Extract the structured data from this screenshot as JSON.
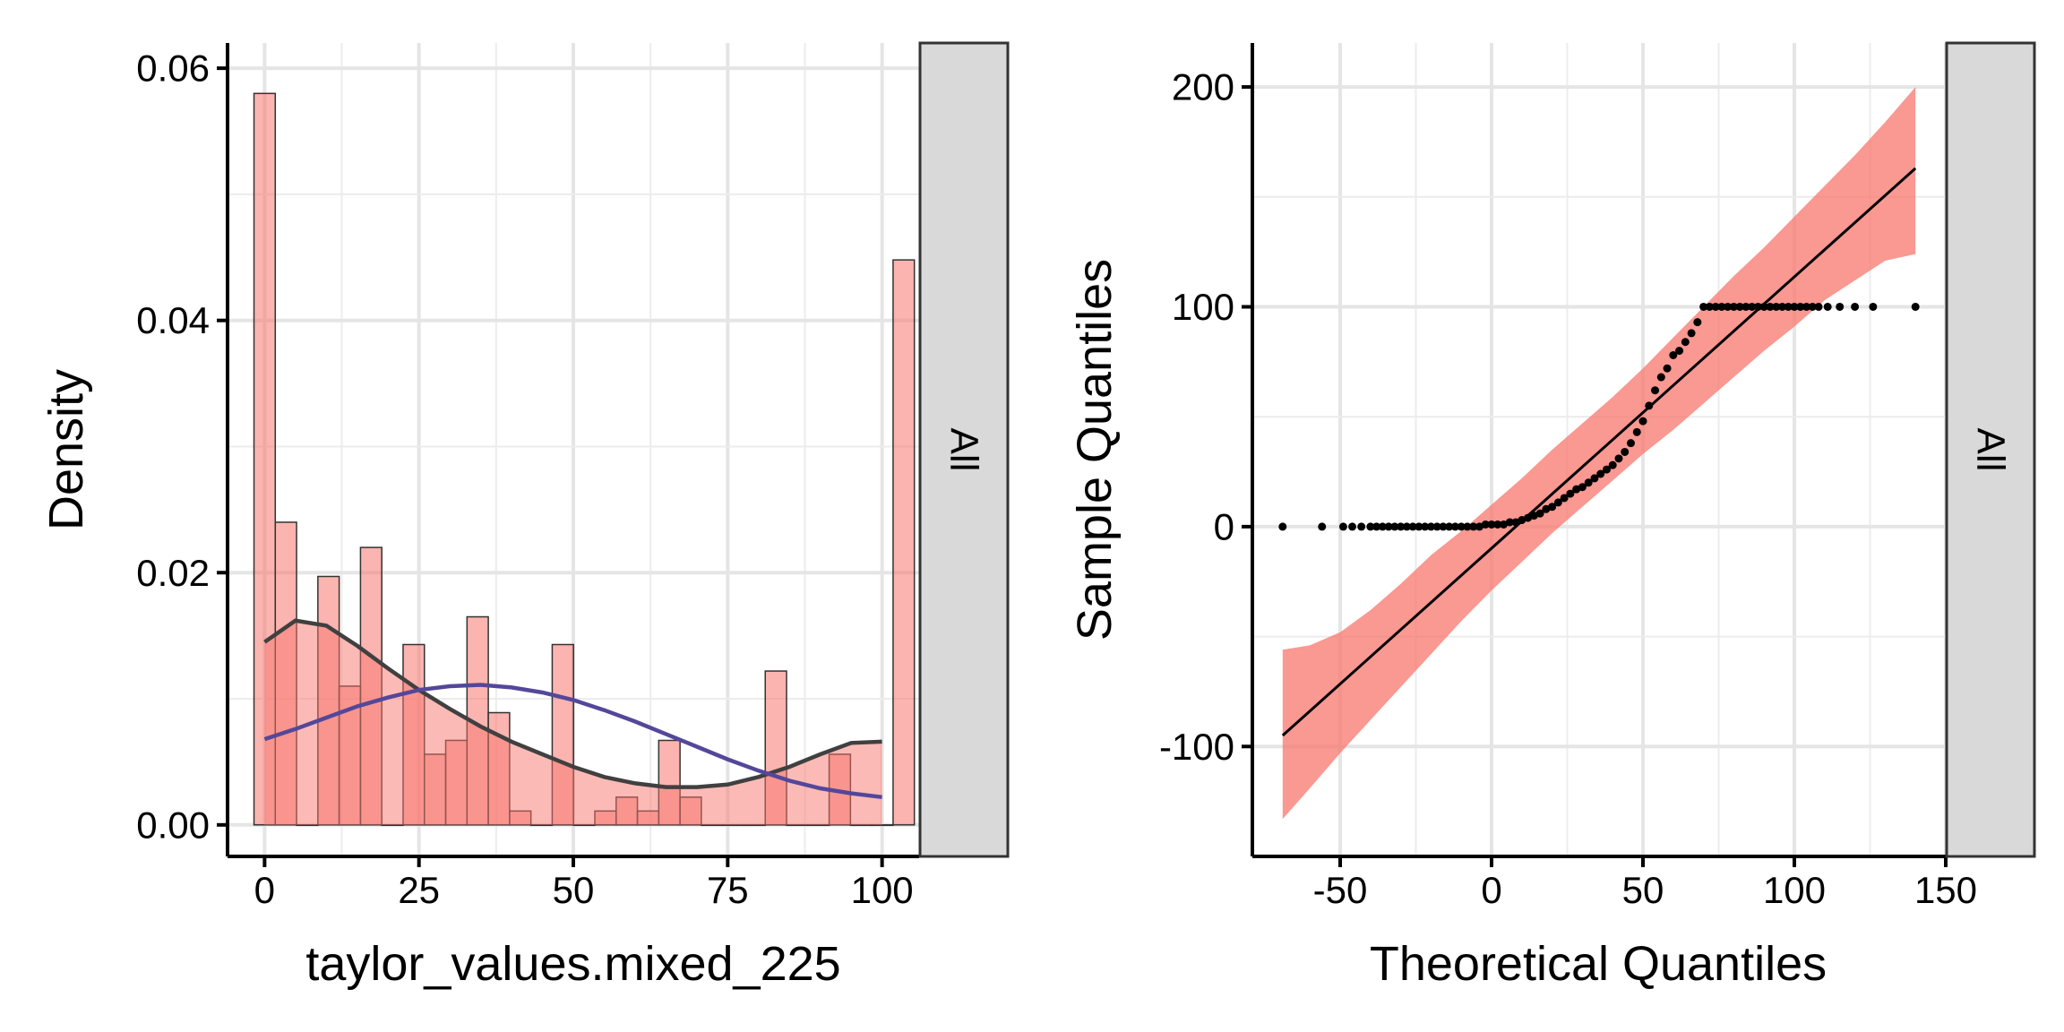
{
  "chart_data": [
    {
      "type": "histogram",
      "xlabel": "taylor_values.mixed_225",
      "ylabel": "Density",
      "facet_label": "All",
      "xlim": [
        -6,
        106
      ],
      "ylim": [
        -0.0025,
        0.062
      ],
      "x_ticks": [
        0,
        25,
        50,
        75,
        100
      ],
      "x_tick_labels": [
        "0",
        "25",
        "50",
        "75",
        "100"
      ],
      "y_ticks": [
        0,
        0.02,
        0.04,
        0.06
      ],
      "y_tick_labels": [
        "0.00",
        "0.02",
        "0.04",
        "0.06"
      ],
      "grid": true,
      "bin_width": 3.45,
      "bin_start": -1.72,
      "histogram": [
        0.058,
        0.024,
        0.0,
        0.0197,
        0.011,
        0.022,
        0.0,
        0.0143,
        0.0056,
        0.0067,
        0.0165,
        0.0089,
        0.0011,
        0.0,
        0.0143,
        0.0,
        0.0011,
        0.0022,
        0.0011,
        0.0067,
        0.0022,
        0.0,
        0.0,
        0.0,
        0.0122,
        0.0,
        0.0,
        0.0056,
        0.0,
        0.0,
        0.0448
      ],
      "filled_density": {
        "x": [
          0,
          5,
          10,
          15,
          20,
          25,
          30,
          35,
          40,
          45,
          50,
          55,
          60,
          65,
          70,
          75,
          80,
          85,
          90,
          95,
          100
        ],
        "y": [
          0.0145,
          0.0162,
          0.0158,
          0.0142,
          0.0124,
          0.0107,
          0.0092,
          0.0078,
          0.0066,
          0.0056,
          0.0046,
          0.0038,
          0.0033,
          0.003,
          0.003,
          0.0032,
          0.0038,
          0.0046,
          0.0056,
          0.0065,
          0.0066
        ]
      },
      "series": [
        {
          "name": "kernel density",
          "color": "#404040",
          "x": [
            0,
            5,
            10,
            15,
            20,
            25,
            30,
            35,
            40,
            45,
            50,
            55,
            60,
            65,
            70,
            75,
            80,
            85,
            90,
            95,
            100
          ],
          "y": [
            0.0145,
            0.0162,
            0.0158,
            0.0142,
            0.0124,
            0.0107,
            0.0092,
            0.0078,
            0.0066,
            0.0056,
            0.0046,
            0.0038,
            0.0033,
            0.003,
            0.003,
            0.0032,
            0.0038,
            0.0046,
            0.0056,
            0.0065,
            0.0066
          ]
        },
        {
          "name": "normal density",
          "color": "#54479a",
          "x": [
            0,
            5,
            10,
            15,
            20,
            25,
            30,
            35,
            40,
            45,
            50,
            55,
            60,
            65,
            70,
            75,
            80,
            85,
            90,
            95,
            100
          ],
          "y": [
            0.0068,
            0.0076,
            0.0085,
            0.0094,
            0.0101,
            0.0107,
            0.011,
            0.0111,
            0.0109,
            0.0105,
            0.0099,
            0.0091,
            0.0082,
            0.0072,
            0.0062,
            0.0052,
            0.0043,
            0.0035,
            0.0029,
            0.0025,
            0.0022
          ]
        }
      ],
      "colors": {
        "bar_fill": "#f8766d",
        "bar_stroke": "#333333"
      }
    },
    {
      "type": "scatter",
      "xlabel": "Theoretical Quantiles",
      "ylabel": "Sample Quantiles",
      "facet_label": "All",
      "xlim": [
        -79,
        150
      ],
      "ylim": [
        -150,
        220
      ],
      "x_ticks": [
        -50,
        0,
        50,
        100,
        150
      ],
      "x_tick_labels": [
        "-50",
        "0",
        "50",
        "100",
        "150"
      ],
      "y_ticks": [
        -100,
        0,
        100,
        200
      ],
      "y_tick_labels": [
        "-100",
        "0",
        "100",
        "200"
      ],
      "grid": true,
      "reference_line": {
        "x": [
          -69,
          140
        ],
        "y": [
          -95,
          163
        ]
      },
      "confidence_band": {
        "x": [
          -69,
          -60,
          -50,
          -40,
          -30,
          -20,
          -10,
          0,
          10,
          20,
          30,
          40,
          50,
          60,
          70,
          80,
          90,
          100,
          110,
          120,
          130,
          140
        ],
        "lower": [
          -133,
          -119,
          -103,
          -88,
          -73,
          -58,
          -43,
          -29,
          -16,
          -3,
          9,
          21,
          33,
          44,
          56,
          68,
          80,
          91,
          103,
          112,
          121,
          124
        ],
        "upper": [
          -56,
          -54,
          -48,
          -38,
          -26,
          -13,
          -2,
          10,
          22,
          35,
          47,
          59,
          72,
          86,
          100,
          114,
          127,
          141,
          155,
          169,
          184,
          200
        ]
      },
      "points": {
        "x": [
          -69,
          -56,
          -49,
          -46,
          -43,
          -40,
          -38,
          -36,
          -34,
          -32,
          -30,
          -28,
          -26,
          -24,
          -22,
          -20,
          -18,
          -16,
          -14,
          -12,
          -10,
          -8,
          -6,
          -4,
          -2,
          0,
          2,
          4,
          6,
          8,
          10,
          12,
          14,
          16,
          18,
          20,
          22,
          24,
          26,
          28,
          30,
          32,
          34,
          36,
          38,
          40,
          42,
          44,
          46,
          48,
          50,
          52,
          54,
          56,
          58,
          60,
          62,
          64,
          66,
          68,
          70,
          72,
          74,
          76,
          78,
          80,
          82,
          84,
          86,
          88,
          90,
          92,
          94,
          96,
          98,
          100,
          102,
          104,
          106,
          108,
          111,
          115,
          120,
          126,
          140
        ],
        "y": [
          0,
          0,
          0,
          0,
          0,
          0,
          0,
          0,
          0,
          0,
          0,
          0,
          0,
          0,
          0,
          0,
          0,
          0,
          0,
          0,
          0,
          0,
          0,
          0,
          1,
          1,
          1,
          1,
          2,
          2,
          3,
          4,
          5,
          6,
          8,
          9,
          11,
          13,
          15,
          17,
          18,
          20,
          22,
          24,
          26,
          28,
          31,
          34,
          38,
          43,
          48,
          55,
          62,
          68,
          72,
          78,
          80,
          84,
          88,
          93,
          100,
          100,
          100,
          100,
          100,
          100,
          100,
          100,
          100,
          100,
          100,
          100,
          100,
          100,
          100,
          100,
          100,
          100,
          100,
          100,
          100,
          100,
          100,
          100,
          100
        ]
      },
      "colors": {
        "band": "#f8766d",
        "line": "#000000",
        "points": "#000000"
      }
    }
  ]
}
